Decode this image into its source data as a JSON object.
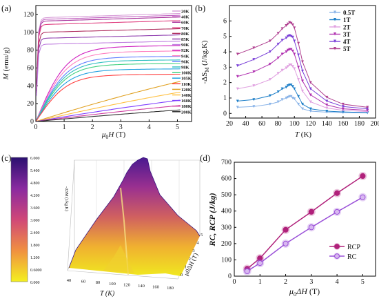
{
  "panels": {
    "a": {
      "label": "(a)"
    },
    "b": {
      "label": "(b)"
    },
    "c": {
      "label": "(c)"
    },
    "d": {
      "label": "(d)"
    }
  },
  "chart_data": [
    {
      "id": "a",
      "type": "line",
      "xlabel": "μ0H (T)",
      "ylabel": "M (emu/g)",
      "xlim": [
        0,
        5.5
      ],
      "ylim": [
        0,
        130
      ],
      "xticks": [
        0,
        1,
        2,
        3,
        4,
        5
      ],
      "yticks": [
        0,
        20,
        40,
        60,
        80,
        100,
        120
      ],
      "legend_position": "right",
      "series": [
        {
          "name": "20K",
          "color": "#d9a0d9",
          "Msat": 121,
          "shape": "sat"
        },
        {
          "name": "40K",
          "color": "#c060c0",
          "Msat": 119,
          "shape": "sat"
        },
        {
          "name": "60K",
          "color": "#a8309a",
          "Msat": 117,
          "shape": "sat"
        },
        {
          "name": "70K",
          "color": "#e04080",
          "Msat": 113,
          "shape": "sat"
        },
        {
          "name": "80K",
          "color": "#b03060",
          "Msat": 104,
          "shape": "sat"
        },
        {
          "name": "85K",
          "color": "#9040b0",
          "Msat": 97,
          "shape": "sat"
        },
        {
          "name": "90K",
          "color": "#c080e0",
          "Msat": 90,
          "shape": "sat"
        },
        {
          "name": "92K",
          "color": "#d020c0",
          "Msat": 85,
          "shape": "mid"
        },
        {
          "name": "94K",
          "color": "#ff80c0",
          "Msat": 79,
          "shape": "mid"
        },
        {
          "name": "96K",
          "color": "#6080ff",
          "Msat": 73,
          "shape": "mid"
        },
        {
          "name": "98K",
          "color": "#30c0c0",
          "Msat": 69,
          "shape": "mid"
        },
        {
          "name": "100K",
          "color": "#40d080",
          "Msat": 65,
          "shape": "mid"
        },
        {
          "name": "105K",
          "color": "#20a0e0",
          "Msat": 59,
          "shape": "mid"
        },
        {
          "name": "110K",
          "color": "#ff4040",
          "Msat": 53,
          "shape": "mid"
        },
        {
          "name": "120K",
          "color": "#e0a020",
          "Msat": 45,
          "shape": "lin"
        },
        {
          "name": "140K",
          "color": "#ffc040",
          "Msat": 33,
          "shape": "lin"
        },
        {
          "name": "160K",
          "color": "#8040ff",
          "Msat": 24,
          "shape": "lin"
        },
        {
          "name": "180K",
          "color": "#d040a0",
          "Msat": 18,
          "shape": "lin"
        },
        {
          "name": "200K",
          "color": "#303030",
          "Msat": 13,
          "shape": "lin"
        }
      ]
    },
    {
      "id": "b",
      "type": "line",
      "xlabel": "T (K)",
      "ylabel": "-ΔSM (J/kg.K)",
      "xlim": [
        20,
        200
      ],
      "ylim": [
        -0.3,
        7
      ],
      "xticks": [
        20,
        40,
        60,
        80,
        100,
        120,
        140,
        160,
        180,
        200
      ],
      "yticks": [
        0,
        1,
        2,
        3,
        4,
        5,
        6
      ],
      "legend_position": "top-right",
      "x": [
        30,
        50,
        70,
        80,
        85,
        90,
        92,
        94,
        96,
        98,
        100,
        105,
        110,
        120,
        140,
        160,
        190
      ],
      "series": [
        {
          "name": "0.5T",
          "color": "#8ab4e8",
          "values": [
            0.4,
            0.45,
            0.6,
            0.75,
            0.9,
            1.0,
            1.05,
            1.1,
            1.1,
            1.0,
            0.95,
            0.6,
            0.3,
            0.15,
            0.08,
            0.05,
            0.03
          ]
        },
        {
          "name": "1T",
          "color": "#1e7fc8",
          "values": [
            0.8,
            0.9,
            1.15,
            1.4,
            1.6,
            1.7,
            1.8,
            1.85,
            1.85,
            1.75,
            1.6,
            1.1,
            0.6,
            0.3,
            0.15,
            0.1,
            0.06
          ]
        },
        {
          "name": "2T",
          "color": "#e0a0e0",
          "values": [
            1.6,
            1.8,
            2.2,
            2.6,
            2.8,
            2.95,
            3.05,
            3.15,
            3.15,
            3.05,
            2.9,
            2.2,
            1.45,
            0.75,
            0.35,
            0.2,
            0.12
          ]
        },
        {
          "name": "3T",
          "color": "#b030b0",
          "values": [
            2.4,
            2.7,
            3.2,
            3.6,
            3.85,
            4.0,
            4.1,
            4.15,
            4.15,
            4.05,
            3.85,
            3.0,
            2.1,
            1.2,
            0.55,
            0.3,
            0.2
          ]
        },
        {
          "name": "4T",
          "color": "#7a40d8",
          "values": [
            3.1,
            3.5,
            4.0,
            4.5,
            4.75,
            4.9,
            5.0,
            5.05,
            5.0,
            4.95,
            4.7,
            3.8,
            2.75,
            1.6,
            0.8,
            0.45,
            0.3
          ]
        },
        {
          "name": "5T",
          "color": "#b04090",
          "values": [
            3.85,
            4.25,
            4.7,
            5.2,
            5.5,
            5.7,
            5.8,
            5.9,
            5.85,
            5.75,
            5.55,
            4.55,
            3.35,
            2.0,
            1.05,
            0.6,
            0.4
          ]
        }
      ]
    },
    {
      "id": "c",
      "type": "surface",
      "zlabel": "-ΔSM (J/kg.K)",
      "xlabel": "T (K)",
      "ylabel": "μ0ΔH (T)",
      "x_ticks": [
        "40",
        "60",
        "80",
        "100",
        "120",
        "140",
        "160",
        "180"
      ],
      "y_ticks": [
        "0",
        "1",
        "2",
        "3",
        "4",
        "5"
      ],
      "colorbar": [
        "6.000",
        "5.400",
        "4.800",
        "4.200",
        "3.600",
        "3.000",
        "2.400",
        "1.800",
        "1.200",
        "0.6000",
        "0.000"
      ]
    },
    {
      "id": "d",
      "type": "line",
      "xlabel": "μ0ΔH (T)",
      "ylabel": "RC, RCP (J/kg)",
      "xlim": [
        0,
        5.5
      ],
      "ylim": [
        0,
        700
      ],
      "xticks": [
        0,
        1,
        2,
        3,
        4,
        5
      ],
      "yticks": [
        0,
        100,
        200,
        300,
        400,
        500,
        600,
        700
      ],
      "legend_position": "bottom-right",
      "x": [
        0.5,
        1,
        2,
        3,
        4,
        5
      ],
      "series": [
        {
          "name": "RCP",
          "color": "#b0207a",
          "values": [
            45,
            110,
            285,
            395,
            510,
            615
          ]
        },
        {
          "name": "RC",
          "color": "#9a50d8",
          "values": [
            30,
            80,
            200,
            300,
            395,
            485
          ]
        }
      ]
    }
  ]
}
